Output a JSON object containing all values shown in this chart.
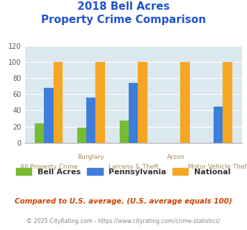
{
  "title_line1": "2018 Bell Acres",
  "title_line2": "Property Crime Comparison",
  "title_color": "#2255cc",
  "categories": [
    "All Property Crime",
    "Burglary",
    "Larceny & Theft",
    "Arson",
    "Motor Vehicle Theft"
  ],
  "xtick_top": [
    "",
    "Burglary",
    "",
    "Arson",
    ""
  ],
  "xtick_bot": [
    "All Property Crime",
    "",
    "Larceny & Theft",
    "",
    "Motor Vehicle Theft"
  ],
  "bell_acres": [
    24,
    19,
    27,
    0,
    0
  ],
  "pennsylvania": [
    68,
    56,
    74,
    0,
    45
  ],
  "national": [
    100,
    100,
    100,
    100,
    100
  ],
  "bell_acres_color": "#77bb33",
  "pennsylvania_color": "#3d7edb",
  "national_color": "#f5a623",
  "ylim": [
    0,
    120
  ],
  "yticks": [
    0,
    20,
    40,
    60,
    80,
    100,
    120
  ],
  "plot_bg": "#dce8f0",
  "legend_labels": [
    "Bell Acres",
    "Pennsylvania",
    "National"
  ],
  "footnote1": "Compared to U.S. average. (U.S. average equals 100)",
  "footnote2": "© 2025 CityRating.com - https://www.cityrating.com/crime-statistics/",
  "footnote1_color": "#cc4400",
  "footnote2_color": "#888888",
  "xtick_top_color": "#aa8855",
  "xtick_bot_color": "#aa8855"
}
